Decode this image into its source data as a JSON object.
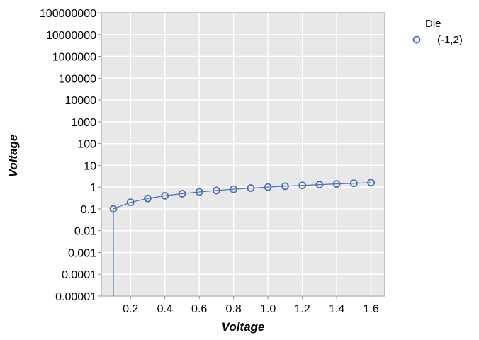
{
  "chart_data": {
    "type": "line",
    "title": "",
    "xlabel": "Voltage",
    "ylabel": "Voltage",
    "y_scale": "log",
    "xlim": [
      0.03,
      1.68
    ],
    "ylim": [
      1e-05,
      100000000
    ],
    "x_ticks": [
      0.2,
      0.4,
      0.6,
      0.8,
      1.0,
      1.2,
      1.4,
      1.6
    ],
    "x_tick_labels": [
      "0.2",
      "0.4",
      "0.6",
      "0.8",
      "1.0",
      "1.2",
      "1.4",
      "1.6"
    ],
    "y_ticks": [
      1e-05,
      0.0001,
      0.001,
      0.01,
      0.1,
      1,
      10,
      100,
      1000,
      10000,
      100000,
      1000000,
      10000000,
      100000000
    ],
    "y_tick_labels": [
      "0.00001",
      "0.0001",
      "0.001",
      "0.01",
      "0.1",
      "1",
      "10",
      "100",
      "1000",
      "10000",
      "100000",
      "1000000",
      "10000000",
      "100000000"
    ],
    "grid": true,
    "legend": {
      "title": "Die",
      "placement": "right"
    },
    "series": [
      {
        "name": "(-1,2)",
        "color": "#4c72b0",
        "marker": "open-circle",
        "x": [
          0.0,
          0.1,
          0.2,
          0.3,
          0.4,
          0.5,
          0.6,
          0.7,
          0.8,
          0.9,
          1.0,
          1.1,
          1.2,
          1.3,
          1.4,
          1.5,
          1.6
        ],
        "y": [
          0.0,
          0.1,
          0.2,
          0.3,
          0.4,
          0.5,
          0.6,
          0.7,
          0.8,
          0.9,
          1.0,
          1.1,
          1.2,
          1.3,
          1.4,
          1.5,
          1.6
        ]
      }
    ],
    "background_color": "#e8e8e8",
    "grid_color": "#ffffff"
  }
}
